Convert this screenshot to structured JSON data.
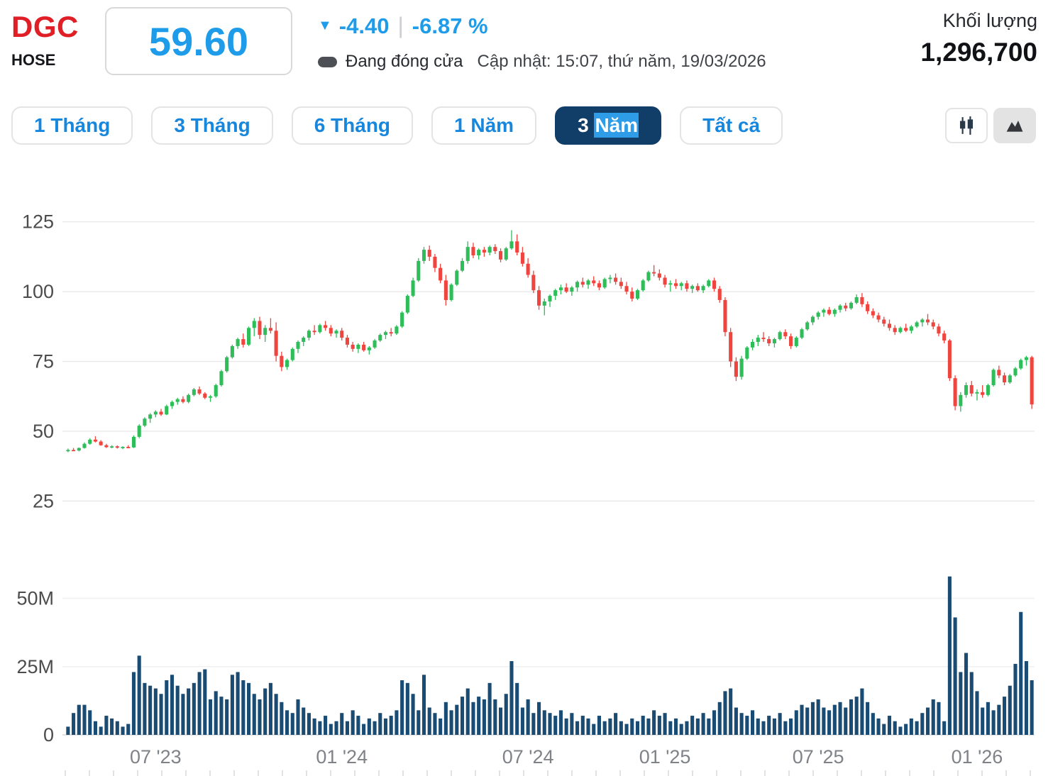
{
  "header": {
    "ticker": "DGC",
    "exchange": "HOSE",
    "price": "59.60",
    "change": "-4.40",
    "separator": "|",
    "change_percent": "-6.87 %",
    "status": "Đang đóng cửa",
    "updated": "Cập nhật: 15:07, thứ năm, 19/03/2026",
    "volume_label": "Khối lượng",
    "volume_value": "1,296,700"
  },
  "toolbar": {
    "ranges": [
      {
        "name": "1-thang",
        "label": "1 Tháng",
        "active": false
      },
      {
        "name": "3-thang",
        "label": "3 Tháng",
        "active": false
      },
      {
        "name": "6-thang",
        "label": "6 Tháng",
        "active": false
      },
      {
        "name": "1-nam",
        "label": "1 Năm",
        "active": false
      },
      {
        "name": "3-nam",
        "label": "3 Năm",
        "active": true,
        "selected_text": "Năm"
      },
      {
        "name": "tat-ca",
        "label": "Tất cả",
        "active": false
      }
    ],
    "chart_types": [
      {
        "name": "candlestick-chart",
        "type": "candlestick",
        "active": false
      },
      {
        "name": "area-chart",
        "type": "area",
        "active": true
      }
    ]
  },
  "chart_data": {
    "type": "candlestick",
    "title": "DGC weekly price (3 years) with volume",
    "price_axis": {
      "ticks": [
        125,
        100,
        75,
        50,
        25
      ],
      "ylim": [
        19,
        145
      ]
    },
    "volume_axis": {
      "ticks": [
        {
          "label": "50M",
          "value": 50
        },
        {
          "label": "25M",
          "value": 25
        },
        {
          "label": "0",
          "value": 0
        }
      ],
      "ylim": [
        0,
        62
      ],
      "unit": "M shares"
    },
    "x_labels": [
      {
        "label": "07 '23",
        "index": 16
      },
      {
        "label": "01 '24",
        "index": 50
      },
      {
        "label": "07 '24",
        "index": 84
      },
      {
        "label": "01 '25",
        "index": 109
      },
      {
        "label": "07 '25",
        "index": 137
      },
      {
        "label": "01 '26",
        "index": 166
      }
    ],
    "colors": {
      "up": "#2ebd59",
      "down": "#f0443e",
      "volume": "#1a4b73",
      "grid": "#e9e9e9",
      "axis_text": "#4c4c4c",
      "x_text": "#7f8287",
      "accent_blue": "#1e9cea",
      "ticker_red": "#e01e25",
      "active_tab_bg": "#113e68",
      "selection_blue": "#2e9ce6"
    },
    "candle_format": [
      "open",
      "high",
      "low",
      "close",
      "volume_millions"
    ],
    "candles": [
      [
        43.0,
        43.8,
        42.5,
        43.3,
        3
      ],
      [
        43.3,
        44.0,
        42.9,
        43.1,
        8
      ],
      [
        43.1,
        44.2,
        42.8,
        44.0,
        11
      ],
      [
        44.0,
        46.0,
        43.8,
        45.5,
        11
      ],
      [
        45.5,
        47.5,
        45.2,
        47.0,
        9
      ],
      [
        47.0,
        48.2,
        46.0,
        46.3,
        5
      ],
      [
        46.3,
        46.8,
        44.8,
        45.0,
        3
      ],
      [
        45.0,
        45.5,
        44.0,
        44.3,
        7
      ],
      [
        44.3,
        45.0,
        43.9,
        44.6,
        6
      ],
      [
        44.6,
        44.9,
        43.8,
        44.1,
        5
      ],
      [
        44.1,
        44.6,
        43.6,
        44.4,
        3
      ],
      [
        44.4,
        45.0,
        43.9,
        44.2,
        4
      ],
      [
        44.2,
        48.5,
        44.0,
        48.0,
        23
      ],
      [
        48.0,
        52.5,
        47.5,
        52.0,
        29
      ],
      [
        52.0,
        55.0,
        51.5,
        54.5,
        19
      ],
      [
        54.5,
        56.5,
        53.0,
        56.0,
        18
      ],
      [
        56.0,
        57.5,
        55.0,
        57.0,
        17
      ],
      [
        57.0,
        58.0,
        55.5,
        56.0,
        15
      ],
      [
        56.0,
        59.5,
        55.8,
        59.0,
        20
      ],
      [
        59.0,
        61.0,
        58.0,
        60.5,
        22
      ],
      [
        60.5,
        62.0,
        59.5,
        61.5,
        18
      ],
      [
        61.5,
        62.5,
        60.0,
        60.5,
        15
      ],
      [
        60.5,
        63.5,
        60.0,
        63.0,
        17
      ],
      [
        63.0,
        65.5,
        62.5,
        65.0,
        19
      ],
      [
        65.0,
        66.0,
        63.0,
        63.5,
        23
      ],
      [
        63.5,
        64.0,
        61.5,
        62.0,
        24
      ],
      [
        62.0,
        63.0,
        60.5,
        62.5,
        13
      ],
      [
        62.5,
        67.0,
        62.0,
        66.5,
        16
      ],
      [
        66.5,
        72.0,
        66.0,
        71.5,
        14
      ],
      [
        71.5,
        77.0,
        71.0,
        76.5,
        13
      ],
      [
        76.5,
        81.0,
        76.0,
        80.5,
        22
      ],
      [
        80.5,
        83.5,
        79.5,
        83.0,
        23
      ],
      [
        83.0,
        85.0,
        80.0,
        81.0,
        20
      ],
      [
        81.0,
        87.5,
        80.5,
        87.0,
        19
      ],
      [
        87.0,
        90.5,
        84.0,
        89.5,
        15
      ],
      [
        89.5,
        91.0,
        83.0,
        84.5,
        13
      ],
      [
        84.5,
        88.0,
        82.0,
        87.0,
        17
      ],
      [
        87.0,
        90.5,
        85.0,
        86.0,
        19
      ],
      [
        86.0,
        89.0,
        75.0,
        77.0,
        15
      ],
      [
        77.0,
        78.5,
        71.5,
        73.0,
        12
      ],
      [
        73.0,
        76.0,
        72.0,
        75.5,
        9
      ],
      [
        75.5,
        80.0,
        75.0,
        79.5,
        8
      ],
      [
        79.5,
        82.5,
        78.0,
        82.0,
        13
      ],
      [
        82.0,
        84.0,
        80.5,
        83.5,
        10
      ],
      [
        83.5,
        86.5,
        82.5,
        86.0,
        8
      ],
      [
        86.0,
        88.0,
        84.5,
        85.5,
        6
      ],
      [
        85.5,
        88.5,
        85.0,
        88.0,
        5
      ],
      [
        88.0,
        89.5,
        86.0,
        87.0,
        7
      ],
      [
        87.0,
        88.0,
        84.0,
        85.0,
        4
      ],
      [
        85.0,
        86.5,
        83.5,
        86.0,
        5
      ],
      [
        86.0,
        87.0,
        82.5,
        83.5,
        8
      ],
      [
        83.5,
        84.5,
        80.0,
        81.0,
        5
      ],
      [
        81.0,
        82.0,
        78.5,
        79.5,
        9
      ],
      [
        79.5,
        81.5,
        78.0,
        81.0,
        7
      ],
      [
        81.0,
        82.0,
        78.5,
        79.0,
        4
      ],
      [
        79.0,
        80.5,
        77.5,
        80.0,
        6
      ],
      [
        80.0,
        83.0,
        79.5,
        82.5,
        5
      ],
      [
        82.5,
        85.0,
        82.0,
        84.5,
        8
      ],
      [
        84.5,
        86.0,
        83.0,
        85.5,
        6
      ],
      [
        85.5,
        87.0,
        84.0,
        85.0,
        7
      ],
      [
        85.0,
        88.0,
        84.5,
        87.5,
        9
      ],
      [
        87.5,
        93.0,
        87.0,
        92.5,
        20
      ],
      [
        92.5,
        99.0,
        92.0,
        98.5,
        19
      ],
      [
        98.5,
        105.0,
        98.0,
        104.0,
        15
      ],
      [
        104.0,
        112.0,
        103.5,
        111.0,
        9
      ],
      [
        111.0,
        116.0,
        110.0,
        115.0,
        22
      ],
      [
        115.0,
        116.5,
        111.0,
        112.5,
        10
      ],
      [
        112.5,
        113.5,
        107.0,
        108.5,
        8
      ],
      [
        108.5,
        110.0,
        103.0,
        104.0,
        6
      ],
      [
        104.0,
        106.0,
        95.0,
        97.0,
        12
      ],
      [
        97.0,
        103.0,
        96.5,
        102.5,
        9
      ],
      [
        102.5,
        108.0,
        102.0,
        107.5,
        11
      ],
      [
        107.5,
        112.0,
        107.0,
        111.0,
        14
      ],
      [
        111.0,
        118.0,
        110.0,
        116.0,
        17
      ],
      [
        116.0,
        117.5,
        112.0,
        113.0,
        12
      ],
      [
        113.0,
        115.5,
        111.5,
        115.0,
        14
      ],
      [
        115.0,
        116.0,
        112.5,
        114.0,
        13
      ],
      [
        114.0,
        116.5,
        113.0,
        116.0,
        19
      ],
      [
        116.0,
        117.0,
        113.5,
        114.5,
        13
      ],
      [
        114.5,
        115.5,
        110.5,
        111.5,
        10
      ],
      [
        111.5,
        116.0,
        111.0,
        115.5,
        15
      ],
      [
        115.5,
        122.0,
        115.0,
        118.0,
        27
      ],
      [
        118.0,
        120.5,
        113.0,
        114.0,
        19
      ],
      [
        114.0,
        116.0,
        109.0,
        110.0,
        10
      ],
      [
        110.0,
        112.0,
        105.0,
        106.0,
        13
      ],
      [
        106.0,
        107.5,
        99.5,
        100.5,
        8
      ],
      [
        100.5,
        102.0,
        93.5,
        95.0,
        12
      ],
      [
        95.0,
        97.5,
        91.5,
        96.5,
        9
      ],
      [
        96.5,
        99.0,
        94.5,
        98.5,
        8
      ],
      [
        98.5,
        101.0,
        97.0,
        100.5,
        7
      ],
      [
        100.5,
        102.5,
        99.0,
        101.5,
        9
      ],
      [
        101.5,
        103.0,
        99.5,
        100.0,
        6
      ],
      [
        100.0,
        102.0,
        98.5,
        101.5,
        8
      ],
      [
        101.5,
        104.0,
        100.0,
        103.5,
        5
      ],
      [
        103.5,
        105.0,
        101.5,
        102.5,
        7
      ],
      [
        102.5,
        104.5,
        101.0,
        104.0,
        6
      ],
      [
        104.0,
        105.5,
        102.0,
        103.0,
        4
      ],
      [
        103.0,
        104.0,
        100.5,
        101.5,
        7
      ],
      [
        101.5,
        105.0,
        101.0,
        104.5,
        5
      ],
      [
        104.5,
        106.0,
        103.0,
        105.0,
        6
      ],
      [
        105.0,
        106.5,
        102.5,
        103.5,
        8
      ],
      [
        103.5,
        105.0,
        101.0,
        102.0,
        5
      ],
      [
        102.0,
        103.5,
        99.0,
        100.0,
        4
      ],
      [
        100.0,
        101.5,
        96.5,
        97.5,
        6
      ],
      [
        97.5,
        101.0,
        97.0,
        100.5,
        5
      ],
      [
        100.5,
        104.5,
        100.0,
        104.0,
        7
      ],
      [
        104.0,
        107.5,
        103.5,
        107.0,
        6
      ],
      [
        107.0,
        109.5,
        105.5,
        106.5,
        9
      ],
      [
        106.5,
        108.0,
        104.0,
        105.0,
        7
      ],
      [
        105.0,
        106.0,
        101.5,
        102.5,
        8
      ],
      [
        102.5,
        104.0,
        100.0,
        103.0,
        5
      ],
      [
        103.0,
        104.5,
        101.0,
        102.0,
        6
      ],
      [
        102.0,
        103.5,
        100.5,
        103.0,
        4
      ],
      [
        103.0,
        104.0,
        100.0,
        101.0,
        5
      ],
      [
        101.0,
        102.5,
        99.5,
        102.0,
        7
      ],
      [
        102.0,
        103.0,
        100.0,
        100.5,
        6
      ],
      [
        100.5,
        102.5,
        99.5,
        102.0,
        8
      ],
      [
        102.0,
        104.5,
        101.5,
        104.0,
        6
      ],
      [
        104.0,
        105.0,
        100.0,
        101.0,
        9
      ],
      [
        101.0,
        102.0,
        96.0,
        97.0,
        12
      ],
      [
        97.0,
        98.0,
        84.0,
        85.5,
        16
      ],
      [
        85.5,
        87.0,
        73.0,
        75.0,
        17
      ],
      [
        75.0,
        76.5,
        68.0,
        69.5,
        10
      ],
      [
        69.5,
        77.0,
        68.5,
        76.0,
        8
      ],
      [
        76.0,
        80.5,
        75.5,
        80.0,
        7
      ],
      [
        80.0,
        83.0,
        79.0,
        82.0,
        9
      ],
      [
        82.0,
        84.5,
        80.5,
        83.5,
        6
      ],
      [
        83.5,
        85.5,
        82.0,
        83.0,
        5
      ],
      [
        83.0,
        84.0,
        80.5,
        81.5,
        7
      ],
      [
        81.5,
        83.5,
        80.0,
        83.0,
        6
      ],
      [
        83.0,
        86.0,
        82.5,
        85.5,
        8
      ],
      [
        85.5,
        86.5,
        83.0,
        84.0,
        5
      ],
      [
        84.0,
        85.0,
        79.5,
        80.5,
        6
      ],
      [
        80.5,
        84.0,
        80.0,
        83.5,
        9
      ],
      [
        83.5,
        87.0,
        83.0,
        86.5,
        11
      ],
      [
        86.5,
        89.5,
        86.0,
        89.0,
        10
      ],
      [
        89.0,
        91.5,
        88.0,
        91.0,
        12
      ],
      [
        91.0,
        93.0,
        90.0,
        92.5,
        13
      ],
      [
        92.5,
        94.0,
        91.0,
        93.5,
        10
      ],
      [
        93.5,
        94.5,
        91.5,
        92.0,
        9
      ],
      [
        92.0,
        94.0,
        91.0,
        93.5,
        11
      ],
      [
        93.5,
        95.5,
        92.5,
        95.0,
        12
      ],
      [
        95.0,
        96.0,
        93.0,
        94.0,
        10
      ],
      [
        94.0,
        96.5,
        93.5,
        96.0,
        13
      ],
      [
        96.0,
        99.0,
        95.5,
        98.0,
        14
      ],
      [
        98.0,
        99.5,
        94.5,
        95.5,
        17
      ],
      [
        95.5,
        96.5,
        92.0,
        93.0,
        12
      ],
      [
        93.0,
        94.0,
        90.5,
        91.5,
        8
      ],
      [
        91.5,
        92.5,
        89.0,
        90.0,
        6
      ],
      [
        90.0,
        91.0,
        87.5,
        88.5,
        4
      ],
      [
        88.5,
        90.0,
        86.0,
        87.0,
        7
      ],
      [
        87.0,
        88.0,
        84.5,
        85.5,
        5
      ],
      [
        85.5,
        87.5,
        85.0,
        87.0,
        3
      ],
      [
        87.0,
        88.5,
        85.5,
        86.0,
        4
      ],
      [
        86.0,
        88.0,
        85.0,
        87.5,
        6
      ],
      [
        87.5,
        89.5,
        87.0,
        89.0,
        5
      ],
      [
        89.0,
        90.5,
        87.5,
        90.0,
        8
      ],
      [
        90.0,
        92.0,
        88.0,
        89.0,
        10
      ],
      [
        89.0,
        90.0,
        86.5,
        87.5,
        13
      ],
      [
        87.5,
        88.5,
        84.0,
        85.0,
        12
      ],
      [
        85.0,
        86.0,
        81.5,
        82.5,
        5
      ],
      [
        82.5,
        83.0,
        68.0,
        69.0,
        58
      ],
      [
        69.0,
        70.0,
        57.5,
        59.0,
        43
      ],
      [
        59.0,
        64.0,
        57.0,
        63.0,
        23
      ],
      [
        63.0,
        67.5,
        62.0,
        66.5,
        30
      ],
      [
        66.5,
        68.0,
        62.5,
        63.5,
        23
      ],
      [
        63.5,
        65.0,
        61.0,
        64.0,
        16
      ],
      [
        64.0,
        66.5,
        62.0,
        63.0,
        10
      ],
      [
        63.0,
        67.0,
        62.5,
        66.5,
        12
      ],
      [
        66.5,
        72.5,
        66.0,
        72.0,
        9
      ],
      [
        72.0,
        73.5,
        69.0,
        70.0,
        11
      ],
      [
        70.0,
        71.0,
        66.5,
        67.5,
        14
      ],
      [
        67.5,
        70.5,
        67.0,
        70.0,
        18
      ],
      [
        70.0,
        73.0,
        69.5,
        72.5,
        26
      ],
      [
        72.5,
        76.0,
        72.0,
        75.5,
        45
      ],
      [
        75.5,
        77.0,
        73.5,
        76.5,
        27
      ],
      [
        76.5,
        77.0,
        58.0,
        59.6,
        20
      ]
    ]
  }
}
